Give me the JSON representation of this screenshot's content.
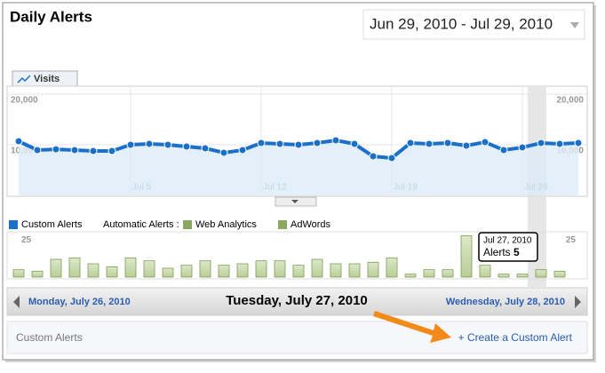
{
  "header": {
    "title": "Daily Alerts",
    "date_range": "Jun 29, 2010 - Jul 29, 2010"
  },
  "visits_chart": {
    "type": "line",
    "tab": "Visits",
    "color": "#1a6fc9",
    "categories": [
      null,
      null,
      null,
      null,
      null,
      null,
      "Jul 5",
      null,
      null,
      null,
      null,
      null,
      null,
      "Jul 12",
      null,
      null,
      null,
      null,
      null,
      null,
      "Jul 19",
      null,
      null,
      null,
      null,
      null,
      null,
      "Jul 26",
      null,
      null,
      null
    ],
    "values": [
      10700,
      8950,
      9100,
      8950,
      8770,
      8770,
      10000,
      10170,
      10000,
      9650,
      9300,
      8420,
      8950,
      10350,
      10170,
      10000,
      10350,
      10880,
      10170,
      7720,
      7370,
      10350,
      10170,
      10350,
      9820,
      10520,
      8950,
      9470,
      10350,
      10170,
      10350
    ],
    "ylim": [
      0,
      20000
    ],
    "yticks": [
      {
        "value": 10000,
        "label": "10,000"
      },
      {
        "value": 20000,
        "label": "20,000"
      }
    ]
  },
  "filters": {
    "custom": "Custom Alerts",
    "automatic": "Automatic Alerts :",
    "web": "Web Analytics",
    "adwords": "AdWords"
  },
  "alerts_chart": {
    "type": "bar",
    "color": "#c9dbb0",
    "values": [
      5,
      4,
      12,
      13,
      9,
      7,
      13,
      11,
      6,
      8,
      11,
      8,
      9,
      11,
      11,
      8,
      12,
      9,
      9,
      10,
      13,
      2,
      5,
      5,
      28,
      8,
      2,
      2,
      5,
      4,
      0
    ],
    "ylim": [
      0,
      30
    ],
    "yticks": [
      25
    ]
  },
  "tooltip": {
    "date": "Jul 27, 2010",
    "label": "Alerts"
  },
  "nav": {
    "prev": "Monday, July 26, 2010",
    "current": "Tuesday, July 27, 2010",
    "next": "Wednesday, July 28, 2010"
  },
  "section": {
    "title": "Custom Alerts",
    "action": "+ Create a Custom Alert"
  }
}
